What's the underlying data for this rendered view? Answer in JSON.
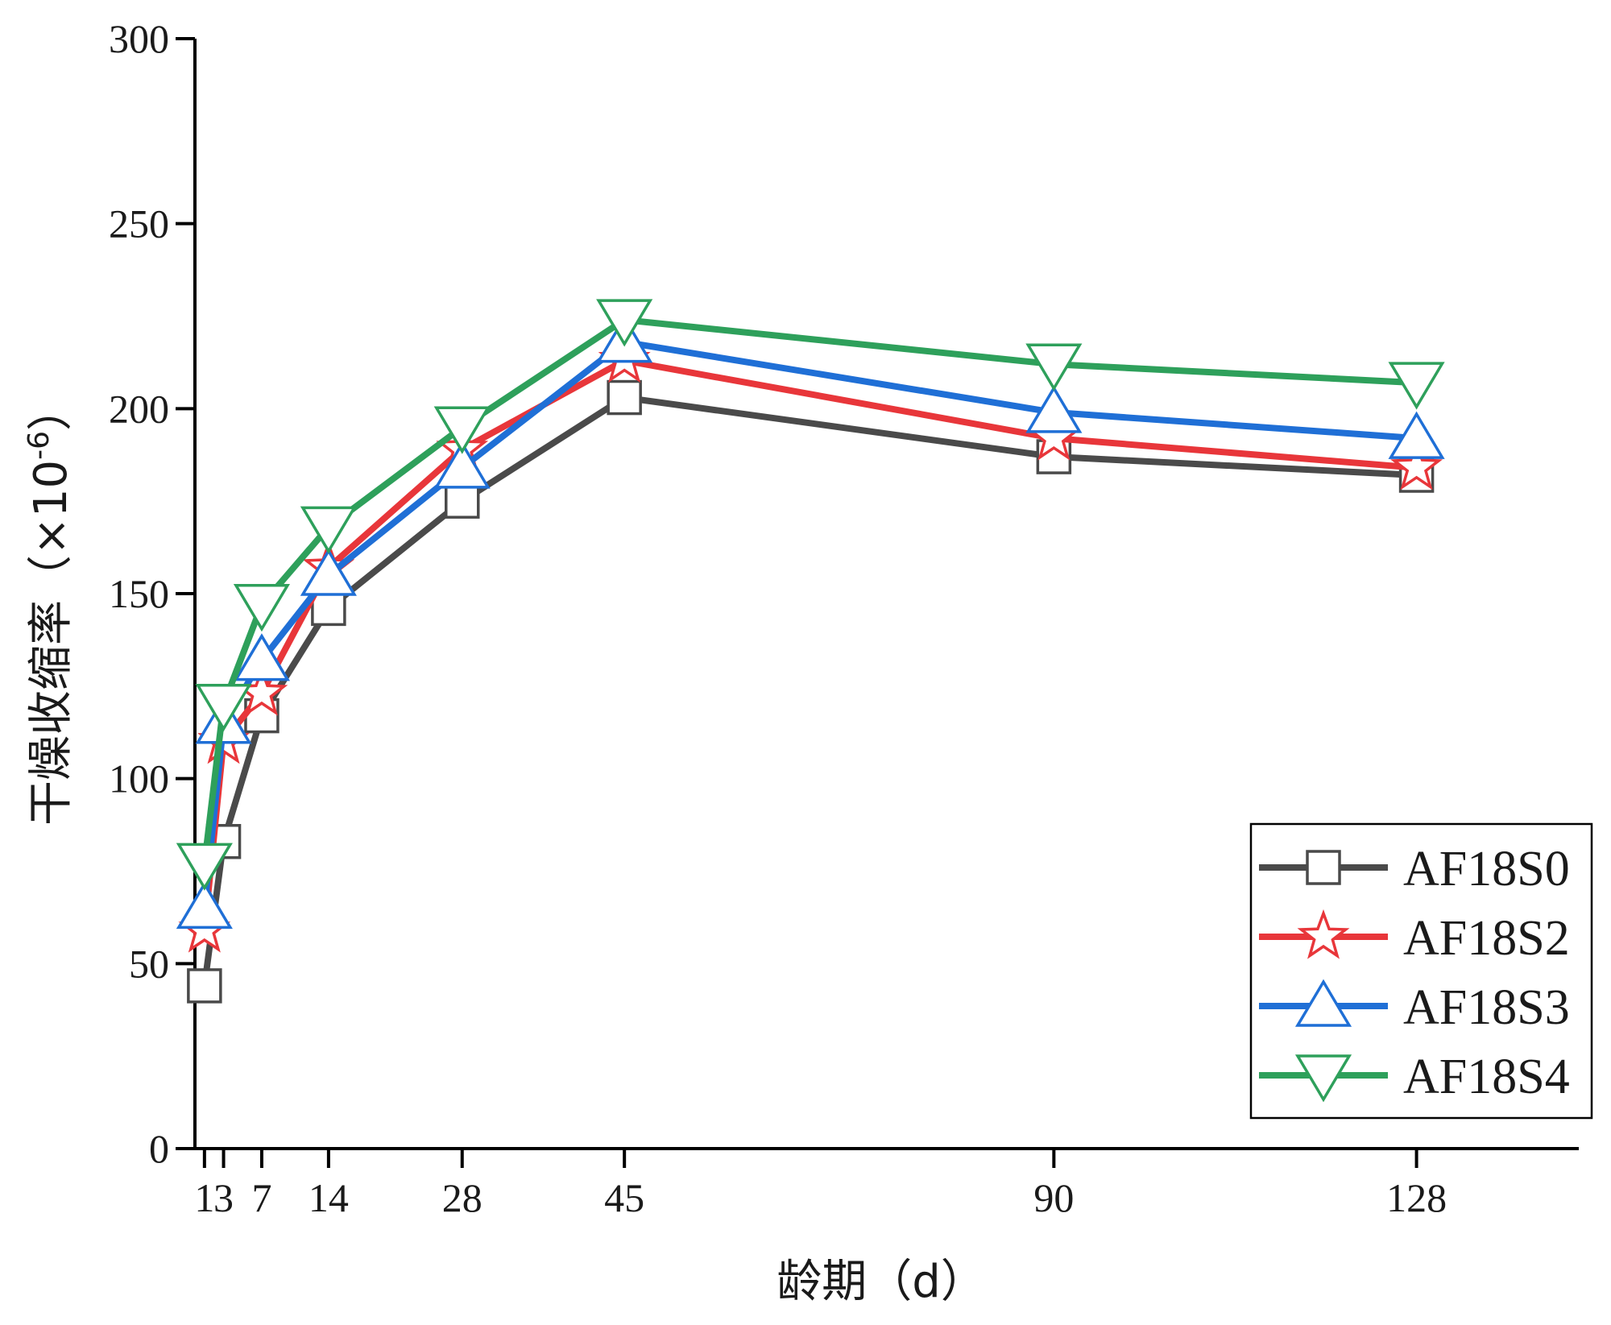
{
  "chart_data": {
    "type": "line",
    "title": "",
    "xlabel": "龄期（d）",
    "ylabel": "干燥收缩率（×10",
    "ylabel_sup": "-6",
    "ylabel_close": "）",
    "xlim": [
      0,
      145
    ],
    "ylim": [
      0,
      300
    ],
    "x_ticks": [
      1,
      3,
      7,
      14,
      28,
      45,
      90,
      128
    ],
    "x_tick_labels": [
      "1",
      "3",
      "7",
      "14",
      "28",
      "45",
      "90",
      "128"
    ],
    "y_ticks": [
      0,
      50,
      100,
      150,
      200,
      250,
      300
    ],
    "y_tick_labels": [
      "0",
      "50",
      "100",
      "150",
      "200",
      "250",
      "300"
    ],
    "grid": false,
    "legend_position": "bottom-right",
    "x": [
      1,
      3,
      7,
      14,
      28,
      45,
      90,
      128
    ],
    "series": [
      {
        "name": "AF18S0",
        "color": "#4a4a4a",
        "marker": "square",
        "values": [
          44,
          83,
          117,
          146,
          175,
          203,
          187,
          182
        ]
      },
      {
        "name": "AF18S2",
        "color": "#e8363a",
        "marker": "star",
        "values": [
          59,
          110,
          123,
          157,
          189,
          213,
          192,
          184
        ]
      },
      {
        "name": "AF18S3",
        "color": "#1f6fd6",
        "marker": "triangle-up",
        "values": [
          65,
          115,
          132,
          155,
          184,
          218,
          199,
          192
        ]
      },
      {
        "name": "AF18S4",
        "color": "#2ea05b",
        "marker": "triangle-down",
        "values": [
          77,
          120,
          147,
          168,
          195,
          224,
          212,
          207
        ]
      }
    ]
  }
}
